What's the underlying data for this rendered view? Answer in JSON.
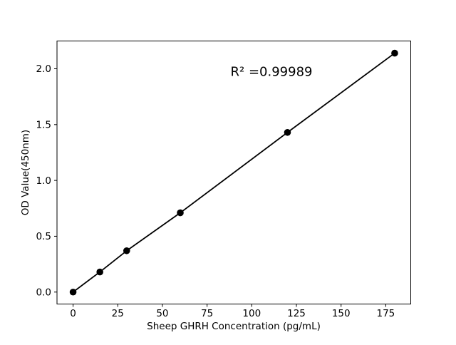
{
  "figure": {
    "background_color": "#ffffff",
    "text_color": "#000000"
  },
  "chart_data": {
    "type": "line",
    "x": [
      0,
      15,
      30,
      60,
      120,
      180
    ],
    "y": [
      0.0,
      0.18,
      0.37,
      0.71,
      1.43,
      2.14
    ],
    "title": "",
    "xlabel": "Sheep GHRH Concentration (pg/mL)",
    "ylabel": "OD Value(450nm)",
    "annotation": "R² =0.99989",
    "xticks": [
      0,
      25,
      50,
      75,
      100,
      125,
      150,
      175
    ],
    "xtick_labels": [
      "0",
      "25",
      "50",
      "75",
      "100",
      "125",
      "150",
      "175"
    ],
    "yticks": [
      0.0,
      0.5,
      1.0,
      1.5,
      2.0
    ],
    "ytick_labels": [
      "0.0",
      "0.5",
      "1.0",
      "1.5",
      "2.0"
    ],
    "xlim": [
      -9,
      189
    ],
    "ylim": [
      -0.107,
      2.249
    ],
    "grid": false,
    "legend_position": "none",
    "line_color": "#000000",
    "marker_color": "#000000",
    "marker": "circle"
  }
}
